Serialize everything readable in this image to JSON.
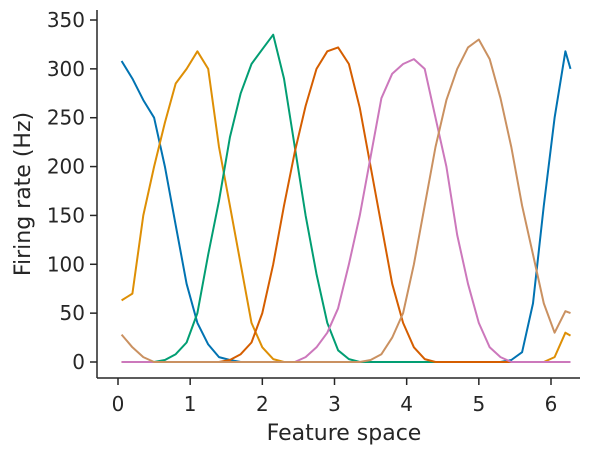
{
  "chart_data": {
    "type": "line",
    "title": "",
    "xlabel": "Feature space",
    "ylabel": "Firing rate (Hz)",
    "xlim": [
      -0.2,
      6.5
    ],
    "ylim": [
      -15,
      360
    ],
    "xticks": [
      0,
      1,
      2,
      3,
      4,
      5,
      6
    ],
    "yticks": [
      0,
      50,
      100,
      150,
      200,
      250,
      300,
      350
    ],
    "grid": false,
    "legend": "none",
    "x": [
      0.05,
      0.2,
      0.35,
      0.5,
      0.65,
      0.8,
      0.95,
      1.1,
      1.25,
      1.4,
      1.55,
      1.7,
      1.85,
      2.0,
      2.15,
      2.3,
      2.45,
      2.6,
      2.75,
      2.9,
      3.05,
      3.2,
      3.35,
      3.5,
      3.65,
      3.8,
      3.95,
      4.1,
      4.25,
      4.4,
      4.55,
      4.7,
      4.85,
      5.0,
      5.15,
      5.3,
      5.45,
      5.6,
      5.75,
      5.9,
      6.05,
      6.2,
      6.27
    ],
    "series": [
      {
        "color": "#0173b2",
        "values": [
          308,
          290,
          268,
          250,
          200,
          140,
          80,
          40,
          18,
          5,
          2,
          0,
          0,
          0,
          0,
          0,
          0,
          0,
          0,
          0,
          0,
          0,
          0,
          0,
          0,
          0,
          0,
          0,
          0,
          0,
          0,
          0,
          0,
          0,
          0,
          0,
          2,
          10,
          60,
          160,
          250,
          318,
          300
        ]
      },
      {
        "color": "#de8f05",
        "values": [
          63,
          70,
          150,
          200,
          245,
          285,
          300,
          318,
          300,
          220,
          160,
          100,
          40,
          15,
          3,
          0,
          0,
          0,
          0,
          0,
          0,
          0,
          0,
          0,
          0,
          0,
          0,
          0,
          0,
          0,
          0,
          0,
          0,
          0,
          0,
          0,
          0,
          0,
          0,
          0,
          5,
          30,
          27
        ]
      },
      {
        "color": "#029e73",
        "values": [
          0,
          0,
          0,
          0,
          2,
          8,
          20,
          50,
          110,
          165,
          230,
          275,
          305,
          320,
          335,
          290,
          220,
          150,
          90,
          40,
          12,
          3,
          0,
          0,
          0,
          0,
          0,
          0,
          0,
          0,
          0,
          0,
          0,
          0,
          0,
          0,
          0,
          0,
          0,
          0,
          0,
          0,
          0
        ]
      },
      {
        "color": "#d55e00",
        "values": [
          0,
          0,
          0,
          0,
          0,
          0,
          0,
          0,
          0,
          0,
          2,
          8,
          20,
          50,
          100,
          160,
          215,
          262,
          300,
          318,
          322,
          305,
          260,
          200,
          140,
          80,
          40,
          15,
          3,
          0,
          0,
          0,
          0,
          0,
          0,
          0,
          0,
          0,
          0,
          0,
          0,
          0,
          0
        ]
      },
      {
        "color": "#cc78bc",
        "values": [
          0,
          0,
          0,
          0,
          0,
          0,
          0,
          0,
          0,
          0,
          0,
          0,
          0,
          0,
          0,
          0,
          0,
          5,
          15,
          30,
          55,
          100,
          150,
          210,
          270,
          295,
          305,
          310,
          300,
          250,
          200,
          130,
          80,
          40,
          15,
          5,
          0,
          0,
          0,
          0,
          0,
          0,
          0
        ]
      },
      {
        "color": "#ca9161",
        "values": [
          28,
          15,
          5,
          0,
          0,
          0,
          0,
          0,
          0,
          0,
          0,
          0,
          0,
          0,
          0,
          0,
          0,
          0,
          0,
          0,
          0,
          0,
          0,
          2,
          8,
          25,
          50,
          100,
          160,
          220,
          268,
          300,
          322,
          330,
          310,
          270,
          220,
          160,
          110,
          60,
          30,
          52,
          50
        ]
      }
    ]
  }
}
